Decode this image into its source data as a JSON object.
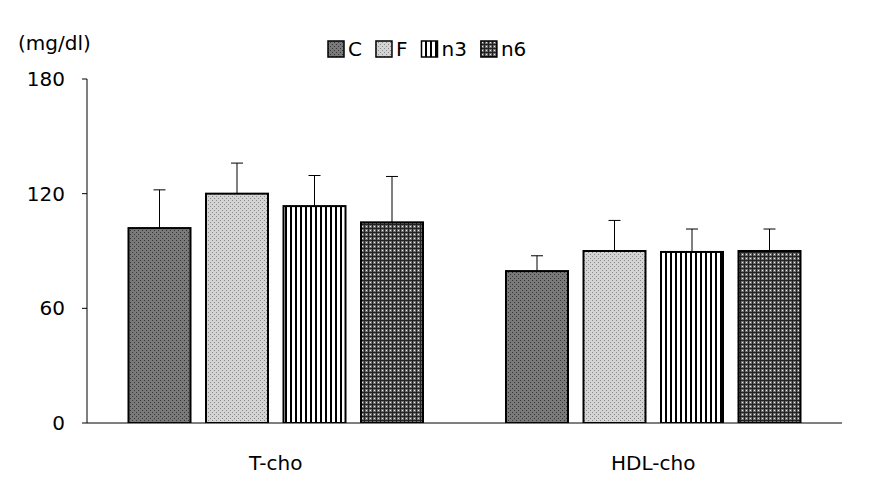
{
  "chart_data": {
    "type": "bar",
    "y_label": "(mg/dl)",
    "categories": [
      "T-cho",
      "HDL-cho"
    ],
    "series": [
      {
        "name": "C",
        "color": "#7a7a7a",
        "values": [
          102,
          79.5
        ],
        "errors": [
          20,
          8
        ]
      },
      {
        "name": "F",
        "color": "#d4d4d4",
        "values": [
          120,
          90
        ],
        "errors": [
          16,
          16
        ]
      },
      {
        "name": "n3",
        "color": "#ffffff",
        "values": [
          113.5,
          89.5
        ],
        "errors": [
          16,
          12
        ]
      },
      {
        "name": "n6",
        "color": "#6e6e6e",
        "values": [
          105,
          90
        ],
        "errors": [
          24,
          11.5
        ]
      }
    ],
    "ylim": [
      0,
      180
    ],
    "yticks": [
      0,
      60,
      120,
      180
    ],
    "grid": false,
    "legend": "top"
  }
}
